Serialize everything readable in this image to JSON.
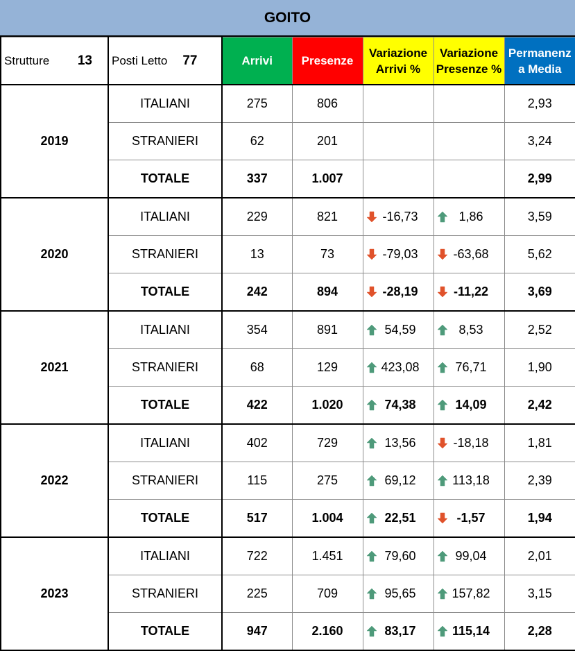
{
  "title": "GOITO",
  "header": {
    "strutture_label": "Strutture",
    "strutture_value": "13",
    "posti_label": "Posti Letto",
    "posti_value": "77",
    "arrivi": "Arrivi",
    "presenze": "Presenze",
    "var_arrivi_l1": "Variazione",
    "var_arrivi_l2": "Arrivi %",
    "var_presenze_l1": "Variazione",
    "var_presenze_l2": "Presenze %",
    "perm_l1": "Permanenz",
    "perm_l2": "a Media"
  },
  "colors": {
    "title_bg": "#95b3d7",
    "arrivi_bg": "#00b050",
    "presenze_bg": "#ff0000",
    "variazione_bg": "#ffff00",
    "permanenza_bg": "#0070c0",
    "arrow_up": "#4e9a7a",
    "arrow_down": "#e0522b"
  },
  "icons": {
    "up": "arrow-up-icon",
    "down": "arrow-down-icon"
  },
  "years": [
    {
      "year": "2019",
      "rows": [
        {
          "label": "ITALIANI",
          "arrivi": "275",
          "presenze": "806",
          "var_arrivi": "",
          "var_arrivi_dir": "",
          "var_presenze": "",
          "var_presenze_dir": "",
          "permanenza": "2,93"
        },
        {
          "label": "STRANIERI",
          "arrivi": "62",
          "presenze": "201",
          "var_arrivi": "",
          "var_arrivi_dir": "",
          "var_presenze": "",
          "var_presenze_dir": "",
          "permanenza": "3,24"
        },
        {
          "label": "TOTALE",
          "arrivi": "337",
          "presenze": "1.007",
          "var_arrivi": "",
          "var_arrivi_dir": "",
          "var_presenze": "",
          "var_presenze_dir": "",
          "permanenza": "2,99"
        }
      ]
    },
    {
      "year": "2020",
      "rows": [
        {
          "label": "ITALIANI",
          "arrivi": "229",
          "presenze": "821",
          "var_arrivi": "-16,73",
          "var_arrivi_dir": "down",
          "var_presenze": "1,86",
          "var_presenze_dir": "up",
          "permanenza": "3,59"
        },
        {
          "label": "STRANIERI",
          "arrivi": "13",
          "presenze": "73",
          "var_arrivi": "-79,03",
          "var_arrivi_dir": "down",
          "var_presenze": "-63,68",
          "var_presenze_dir": "down",
          "permanenza": "5,62"
        },
        {
          "label": "TOTALE",
          "arrivi": "242",
          "presenze": "894",
          "var_arrivi": "-28,19",
          "var_arrivi_dir": "down",
          "var_presenze": "-11,22",
          "var_presenze_dir": "down",
          "permanenza": "3,69"
        }
      ]
    },
    {
      "year": "2021",
      "rows": [
        {
          "label": "ITALIANI",
          "arrivi": "354",
          "presenze": "891",
          "var_arrivi": "54,59",
          "var_arrivi_dir": "up",
          "var_presenze": "8,53",
          "var_presenze_dir": "up",
          "permanenza": "2,52"
        },
        {
          "label": "STRANIERI",
          "arrivi": "68",
          "presenze": "129",
          "var_arrivi": "423,08",
          "var_arrivi_dir": "up",
          "var_presenze": "76,71",
          "var_presenze_dir": "up",
          "permanenza": "1,90"
        },
        {
          "label": "TOTALE",
          "arrivi": "422",
          "presenze": "1.020",
          "var_arrivi": "74,38",
          "var_arrivi_dir": "up",
          "var_presenze": "14,09",
          "var_presenze_dir": "up",
          "permanenza": "2,42"
        }
      ]
    },
    {
      "year": "2022",
      "rows": [
        {
          "label": "ITALIANI",
          "arrivi": "402",
          "presenze": "729",
          "var_arrivi": "13,56",
          "var_arrivi_dir": "up",
          "var_presenze": "-18,18",
          "var_presenze_dir": "down",
          "permanenza": "1,81"
        },
        {
          "label": "STRANIERI",
          "arrivi": "115",
          "presenze": "275",
          "var_arrivi": "69,12",
          "var_arrivi_dir": "up",
          "var_presenze": "113,18",
          "var_presenze_dir": "up",
          "permanenza": "2,39"
        },
        {
          "label": "TOTALE",
          "arrivi": "517",
          "presenze": "1.004",
          "var_arrivi": "22,51",
          "var_arrivi_dir": "up",
          "var_presenze": "-1,57",
          "var_presenze_dir": "down",
          "permanenza": "1,94"
        }
      ]
    },
    {
      "year": "2023",
      "rows": [
        {
          "label": "ITALIANI",
          "arrivi": "722",
          "presenze": "1.451",
          "var_arrivi": "79,60",
          "var_arrivi_dir": "up",
          "var_presenze": "99,04",
          "var_presenze_dir": "up",
          "permanenza": "2,01"
        },
        {
          "label": "STRANIERI",
          "arrivi": "225",
          "presenze": "709",
          "var_arrivi": "95,65",
          "var_arrivi_dir": "up",
          "var_presenze": "157,82",
          "var_presenze_dir": "up",
          "permanenza": "3,15"
        },
        {
          "label": "TOTALE",
          "arrivi": "947",
          "presenze": "2.160",
          "var_arrivi": "83,17",
          "var_arrivi_dir": "up",
          "var_presenze": "115,14",
          "var_presenze_dir": "up",
          "permanenza": "2,28"
        }
      ]
    }
  ]
}
